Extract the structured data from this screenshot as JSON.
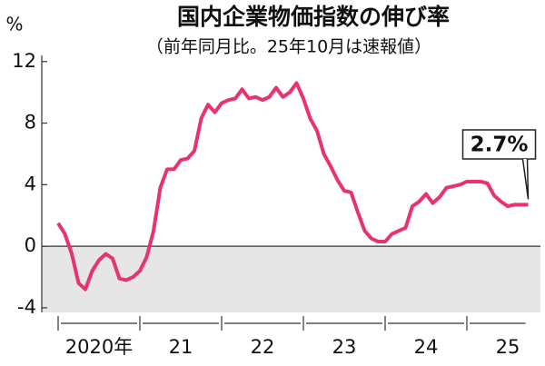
{
  "chart_data": {
    "type": "line",
    "title": "国内企業物価指数の伸び率",
    "subtitle": "（前年同月比。25年10月は速報値）",
    "y_unit": "%",
    "annotation": "2.7%",
    "x": [
      2020.0,
      2020.083,
      2020.167,
      2020.25,
      2020.333,
      2020.417,
      2020.5,
      2020.583,
      2020.667,
      2020.75,
      2020.833,
      2020.917,
      2021.0,
      2021.083,
      2021.167,
      2021.25,
      2021.333,
      2021.417,
      2021.5,
      2021.583,
      2021.667,
      2021.75,
      2021.833,
      2021.917,
      2022.0,
      2022.083,
      2022.167,
      2022.25,
      2022.333,
      2022.417,
      2022.5,
      2022.583,
      2022.667,
      2022.75,
      2022.833,
      2022.917,
      2023.0,
      2023.083,
      2023.167,
      2023.25,
      2023.333,
      2023.417,
      2023.5,
      2023.583,
      2023.667,
      2023.75,
      2023.833,
      2023.917,
      2024.0,
      2024.083,
      2024.167,
      2024.25,
      2024.333,
      2024.417,
      2024.5,
      2024.583,
      2024.667,
      2024.75,
      2024.833,
      2024.917,
      2025.0,
      2025.083,
      2025.167,
      2025.25,
      2025.333,
      2025.417,
      2025.5,
      2025.583,
      2025.667,
      2025.75
    ],
    "series": [
      {
        "color": "#e8336e",
        "values": [
          1.5,
          0.8,
          -0.5,
          -2.4,
          -2.8,
          -1.6,
          -0.9,
          -0.5,
          -0.8,
          -2.1,
          -2.2,
          -2.0,
          -1.6,
          -0.7,
          1.0,
          3.8,
          5.0,
          5.0,
          5.6,
          5.7,
          6.2,
          8.3,
          9.2,
          8.7,
          9.3,
          9.5,
          9.6,
          10.2,
          9.6,
          9.7,
          9.5,
          9.7,
          10.3,
          9.7,
          10.0,
          10.6,
          9.6,
          8.3,
          7.5,
          6.0,
          5.2,
          4.3,
          3.6,
          3.5,
          2.2,
          1.0,
          0.5,
          0.3,
          0.3,
          0.8,
          1.0,
          1.2,
          2.6,
          2.9,
          3.4,
          2.8,
          3.2,
          3.8,
          3.9,
          4.0,
          4.2,
          4.2,
          4.2,
          4.1,
          3.3,
          2.9,
          2.6,
          2.7,
          2.7,
          2.7
        ]
      }
    ],
    "xlim": [
      2019.8,
      2025.9
    ],
    "xboundaries": [
      2020,
      2021,
      2022,
      2023,
      2024,
      2025
    ],
    "xticks": [
      {
        "value": 2020.5,
        "label": "2020年"
      },
      {
        "value": 2021.5,
        "label": "21"
      },
      {
        "value": 2022.5,
        "label": "22"
      },
      {
        "value": 2023.5,
        "label": "23"
      },
      {
        "value": 2024.5,
        "label": "24"
      },
      {
        "value": 2025.5,
        "label": "25"
      }
    ],
    "ylim": [
      -4.3,
      12.4
    ],
    "yticks": [
      -4,
      0,
      4,
      8,
      12
    ],
    "negative_shade": "#e6e6e6"
  }
}
